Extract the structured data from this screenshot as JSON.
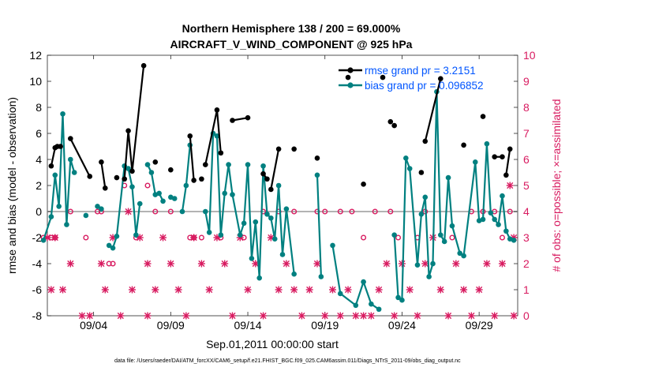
{
  "chart_data": {
    "type": "line",
    "title_line1": "Northern Hemisphere 138 / 200 = 69.000%",
    "title_line2": "AIRCRAFT_V_WIND_COMPONENT @ 925 hPa",
    "xlabel": "Sep.01,2011 00:00:00 start",
    "ylabel_left": "rmse and bias (model - observation)",
    "ylabel_right": "# of obs: o=possible; ×=assimilated",
    "footer": "data file: /Users/raeder/DAI/ATM_forcXX/CAM6_setup/f.e21.FHIST_BGC.f09_025.CAM6assim.011/Diags_NTrS_2011-09/obs_diag_output.nc",
    "xlim": [
      0,
      30.5
    ],
    "ylim_left": [
      -8,
      12
    ],
    "ylim_right": [
      0,
      10
    ],
    "x_ticks": [
      3,
      8,
      13,
      18,
      23,
      28
    ],
    "x_tick_labels": [
      "09/04",
      "09/09",
      "09/14",
      "09/19",
      "09/24",
      "09/29"
    ],
    "y_ticks_left": [
      -8,
      -6,
      -4,
      -2,
      0,
      2,
      4,
      6,
      8,
      10,
      12
    ],
    "y_ticks_right": [
      0,
      1,
      2,
      3,
      4,
      5,
      6,
      7,
      8,
      9,
      10
    ],
    "legend": [
      {
        "name": "rmse grand pr = 3.2151",
        "color": "#000000"
      },
      {
        "name": "bias grand pr = 0.096852",
        "color": "#008080"
      }
    ],
    "colors": {
      "rmse": "#000000",
      "bias": "#008080",
      "obs": "#d81b60",
      "legend_text": "#0055ff",
      "zero_line": "#b3b3b3"
    },
    "series": [
      {
        "name": "rmse",
        "points": [
          [
            0.25,
            3.5
          ],
          [
            0.5,
            4.9
          ],
          [
            0.65,
            5.0
          ],
          [
            0.85,
            5.0
          ],
          [
            1.5,
            5.6
          ],
          [
            2.75,
            2.7
          ],
          [
            3.5,
            3.8
          ],
          [
            3.75,
            1.8
          ],
          [
            4.5,
            2.6
          ],
          [
            5.0,
            2.5
          ],
          [
            5.25,
            6.2
          ],
          [
            5.5,
            3.1
          ],
          [
            6.25,
            11.2
          ],
          [
            7.0,
            3.8
          ],
          [
            8.0,
            3.2
          ],
          [
            9.25,
            5.8
          ],
          [
            9.5,
            2.4
          ],
          [
            10.0,
            2.5
          ],
          [
            10.25,
            3.6
          ],
          [
            11.0,
            7.8
          ],
          [
            11.25,
            4.5
          ],
          [
            12.0,
            7.0
          ],
          [
            13.0,
            7.2
          ],
          [
            14.0,
            2.9
          ],
          [
            14.25,
            2.5
          ],
          [
            14.5,
            1.7
          ],
          [
            15.0,
            4.8
          ],
          [
            16.0,
            4.8
          ],
          [
            17.5,
            4.1
          ],
          [
            19.5,
            10.3
          ],
          [
            20.5,
            2.1
          ],
          [
            21.75,
            10.3
          ],
          [
            22.25,
            6.9
          ],
          [
            22.5,
            6.6
          ],
          [
            24.25,
            3.0
          ],
          [
            24.5,
            5.4
          ],
          [
            25.5,
            10.2
          ],
          [
            27.0,
            5.1
          ],
          [
            28.25,
            7.3
          ],
          [
            29.0,
            4.2
          ],
          [
            29.5,
            4.2
          ],
          [
            29.75,
            2.8
          ],
          [
            30.0,
            4.8
          ]
        ],
        "line_segments": [
          [
            0,
            3
          ],
          [
            4,
            5
          ],
          [
            6,
            7
          ],
          [
            9,
            12
          ],
          [
            15,
            16
          ],
          [
            18,
            20
          ],
          [
            21,
            22
          ],
          [
            23,
            24
          ],
          [
            25,
            26
          ],
          [
            35,
            36
          ],
          [
            39,
            40
          ],
          [
            41,
            42
          ]
        ]
      },
      {
        "name": "bias",
        "points": [
          [
            -0.25,
            -2.2
          ],
          [
            0.25,
            -0.4
          ],
          [
            0.5,
            2.8
          ],
          [
            0.75,
            0.4
          ],
          [
            1.0,
            7.5
          ],
          [
            1.25,
            -1.0
          ],
          [
            1.5,
            4.0
          ],
          [
            1.75,
            3.0
          ],
          [
            2.5,
            -0.3
          ],
          [
            3.25,
            0.4
          ],
          [
            3.5,
            0.2
          ],
          [
            4.0,
            -2.6
          ],
          [
            4.25,
            -2.8
          ],
          [
            4.5,
            -1.9
          ],
          [
            5.0,
            3.5
          ],
          [
            5.25,
            3.3
          ],
          [
            5.5,
            1.9
          ],
          [
            5.75,
            -1.8
          ],
          [
            6.0,
            0.6
          ],
          [
            6.5,
            3.6
          ],
          [
            6.75,
            3.0
          ],
          [
            7.0,
            1.3
          ],
          [
            7.25,
            1.4
          ],
          [
            7.5,
            0.8
          ],
          [
            8.0,
            1.1
          ],
          [
            8.25,
            1.0
          ],
          [
            8.75,
            0.0
          ],
          [
            9.0,
            2.0
          ],
          [
            9.25,
            5.1
          ],
          [
            10.25,
            0.0
          ],
          [
            10.5,
            -1.6
          ],
          [
            10.75,
            6.0
          ],
          [
            11.0,
            5.8
          ],
          [
            11.25,
            -1.8
          ],
          [
            11.5,
            1.4
          ],
          [
            11.75,
            3.6
          ],
          [
            12.0,
            1.3
          ],
          [
            12.5,
            -1.8
          ],
          [
            12.75,
            -0.9
          ],
          [
            13.0,
            3.6
          ],
          [
            13.25,
            -3.6
          ],
          [
            13.5,
            -0.8
          ],
          [
            13.75,
            -5.1
          ],
          [
            14.0,
            3.5
          ],
          [
            14.25,
            -0.2
          ],
          [
            14.5,
            -0.5
          ],
          [
            14.75,
            -2.1
          ],
          [
            15.0,
            2.0
          ],
          [
            15.25,
            -3.3
          ],
          [
            15.5,
            0.2
          ],
          [
            16.0,
            -4.8
          ],
          [
            17.5,
            2.8
          ],
          [
            17.75,
            -5.0
          ],
          [
            18.5,
            -2.6
          ],
          [
            19.0,
            -6.3
          ],
          [
            20.0,
            -7.2
          ],
          [
            20.5,
            -5.4
          ],
          [
            21.0,
            -7.1
          ],
          [
            21.5,
            -7.5
          ],
          [
            22.5,
            -1.8
          ],
          [
            22.75,
            -6.6
          ],
          [
            23.0,
            -6.8
          ],
          [
            23.25,
            4.1
          ],
          [
            23.5,
            3.3
          ],
          [
            24.0,
            -4.1
          ],
          [
            24.25,
            -0.2
          ],
          [
            24.5,
            1.1
          ],
          [
            24.75,
            -5.0
          ],
          [
            25.0,
            -4.0
          ],
          [
            25.25,
            9.2
          ],
          [
            25.5,
            -1.8
          ],
          [
            25.75,
            -2.3
          ],
          [
            26.0,
            2.6
          ],
          [
            26.25,
            -1.1
          ],
          [
            26.75,
            -3.2
          ],
          [
            27.0,
            -3.4
          ],
          [
            27.75,
            3.8
          ],
          [
            28.0,
            -0.7
          ],
          [
            28.25,
            -0.6
          ],
          [
            28.5,
            5.2
          ],
          [
            28.75,
            -0.1
          ],
          [
            29.0,
            -0.6
          ],
          [
            29.25,
            -1.0
          ],
          [
            29.5,
            1.2
          ],
          [
            29.75,
            -1.5
          ],
          [
            30.0,
            -2.1
          ],
          [
            30.25,
            -2.2
          ]
        ],
        "line_segments": [
          [
            0,
            7
          ],
          [
            9,
            10
          ],
          [
            11,
            18
          ],
          [
            19,
            21
          ],
          [
            22,
            23
          ],
          [
            24,
            25
          ],
          [
            26,
            28
          ],
          [
            29,
            50
          ],
          [
            51,
            52
          ],
          [
            53,
            58
          ],
          [
            59,
            85
          ]
        ]
      },
      {
        "name": "obs_possible",
        "marker": "o",
        "points": [
          [
            -0.25,
            3
          ],
          [
            0.25,
            3
          ],
          [
            0.5,
            3
          ],
          [
            1.5,
            4
          ],
          [
            2.5,
            3
          ],
          [
            3.25,
            4
          ],
          [
            3.5,
            4
          ],
          [
            4.0,
            2
          ],
          [
            4.25,
            2
          ],
          [
            5.0,
            5
          ],
          [
            5.75,
            3
          ],
          [
            6.5,
            5
          ],
          [
            7.0,
            4
          ],
          [
            8.0,
            4
          ],
          [
            9.25,
            3
          ],
          [
            9.5,
            3
          ],
          [
            10.0,
            3
          ],
          [
            11.25,
            3
          ],
          [
            12.75,
            3
          ],
          [
            14.0,
            4
          ],
          [
            15.0,
            4
          ],
          [
            16.0,
            4
          ],
          [
            17.5,
            4
          ],
          [
            18.0,
            4
          ],
          [
            19.0,
            4
          ],
          [
            19.75,
            4
          ],
          [
            20.5,
            3
          ],
          [
            21.25,
            4
          ],
          [
            22.25,
            4
          ],
          [
            22.75,
            3
          ],
          [
            24.0,
            3
          ],
          [
            24.5,
            4
          ],
          [
            26.25,
            3
          ],
          [
            27.5,
            4
          ],
          [
            28.25,
            4
          ],
          [
            29.0,
            4
          ],
          [
            29.5,
            3
          ],
          [
            30.0,
            4
          ]
        ]
      },
      {
        "name": "obs_assimilated",
        "marker": "x",
        "points": [
          [
            0,
            3
          ],
          [
            0.5,
            3
          ],
          [
            0.25,
            1
          ],
          [
            1.0,
            1
          ],
          [
            1.5,
            2
          ],
          [
            2.25,
            0
          ],
          [
            2.75,
            0
          ],
          [
            3.5,
            2
          ],
          [
            3.75,
            1
          ],
          [
            4.25,
            3
          ],
          [
            4.75,
            0
          ],
          [
            5.25,
            4
          ],
          [
            5.5,
            1
          ],
          [
            6.0,
            3
          ],
          [
            6.5,
            2
          ],
          [
            6.5,
            0
          ],
          [
            7.0,
            1
          ],
          [
            7.5,
            3
          ],
          [
            8.0,
            2
          ],
          [
            8.5,
            1
          ],
          [
            9.0,
            0
          ],
          [
            9.5,
            3
          ],
          [
            10.0,
            2
          ],
          [
            10.5,
            1
          ],
          [
            11.0,
            3
          ],
          [
            11.5,
            2
          ],
          [
            12.0,
            0
          ],
          [
            12.5,
            3
          ],
          [
            13.0,
            1
          ],
          [
            13.5,
            2
          ],
          [
            14.0,
            0
          ],
          [
            14.5,
            3
          ],
          [
            15.0,
            1
          ],
          [
            15.5,
            2
          ],
          [
            16.0,
            1
          ],
          [
            16.5,
            0
          ],
          [
            17.0,
            1
          ],
          [
            17.5,
            2
          ],
          [
            18.0,
            0
          ],
          [
            18.5,
            1
          ],
          [
            19.0,
            0
          ],
          [
            19.5,
            1
          ],
          [
            20.0,
            0
          ],
          [
            20.5,
            0
          ],
          [
            21.0,
            0
          ],
          [
            21.5,
            1
          ],
          [
            22.0,
            2
          ],
          [
            22.5,
            0
          ],
          [
            23.0,
            2
          ],
          [
            23.5,
            1
          ],
          [
            24.0,
            0
          ],
          [
            24.5,
            2
          ],
          [
            25.0,
            3
          ],
          [
            25.5,
            1
          ],
          [
            26.0,
            0
          ],
          [
            26.5,
            2
          ],
          [
            27.0,
            1
          ],
          [
            27.5,
            0
          ],
          [
            28.0,
            1
          ],
          [
            28.5,
            2
          ],
          [
            29.0,
            0
          ],
          [
            29.5,
            2
          ],
          [
            30.0,
            5
          ],
          [
            30.25,
            3
          ],
          [
            30.25,
            0
          ]
        ]
      }
    ]
  }
}
